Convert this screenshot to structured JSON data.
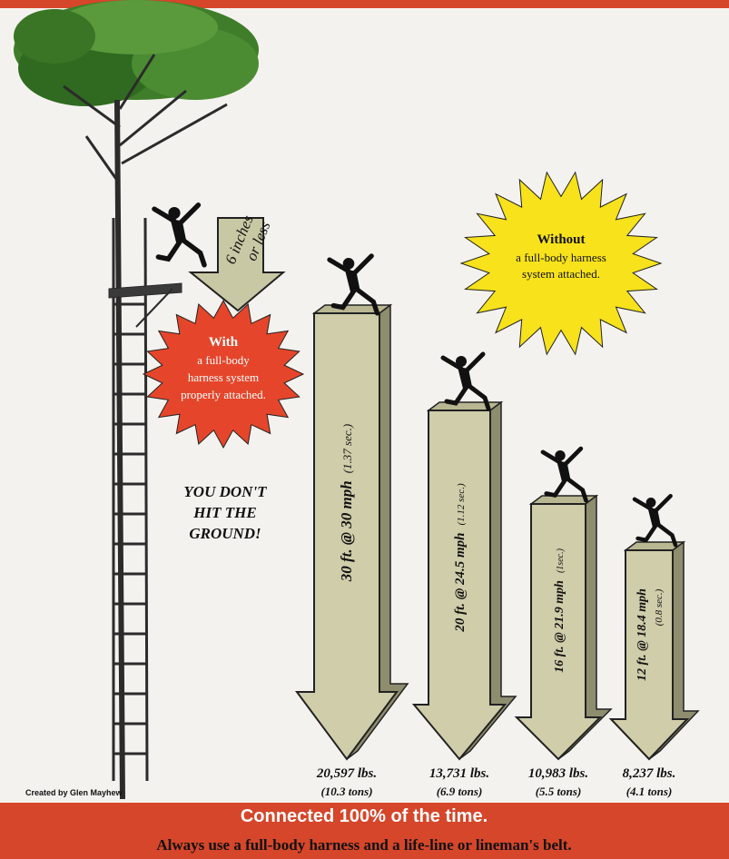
{
  "small_arrow": {
    "lines": [
      "6 inches",
      "or less"
    ]
  },
  "with_burst": {
    "title": "With",
    "lines": [
      "a full-body",
      "harness system",
      "properly attached."
    ]
  },
  "without_burst": {
    "title": "Without",
    "lines": [
      "a full-body harness",
      "system attached."
    ]
  },
  "slogan": {
    "lines": [
      "YOU DON'T",
      "HIT THE",
      "GROUND!"
    ]
  },
  "arrows": [
    {
      "label": "30 ft. @ 30 mph",
      "time": "(1.37 sec.)",
      "force": "20,597 lbs.",
      "tons": "(10.3 tons)"
    },
    {
      "label": "20 ft. @ 24.5 mph",
      "time": "(1.12 sec.)",
      "force": "13,731 lbs.",
      "tons": "(6.9 tons)"
    },
    {
      "label": "16 ft. @ 21.9 mph",
      "time": "(1sec.)",
      "force": "10,983 lbs.",
      "tons": "(5.5 tons)"
    },
    {
      "label": "12 ft. @ 18.4 mph",
      "time": "(0.8 sec.)",
      "force": "8,237 lbs.",
      "tons": "(4.1 tons)"
    }
  ],
  "credit": "Created by Glen Mayhew",
  "footer": {
    "headline": "Connected 100% of the time.",
    "note": "Always use a full-body harness and a life-line or lineman's belt."
  }
}
